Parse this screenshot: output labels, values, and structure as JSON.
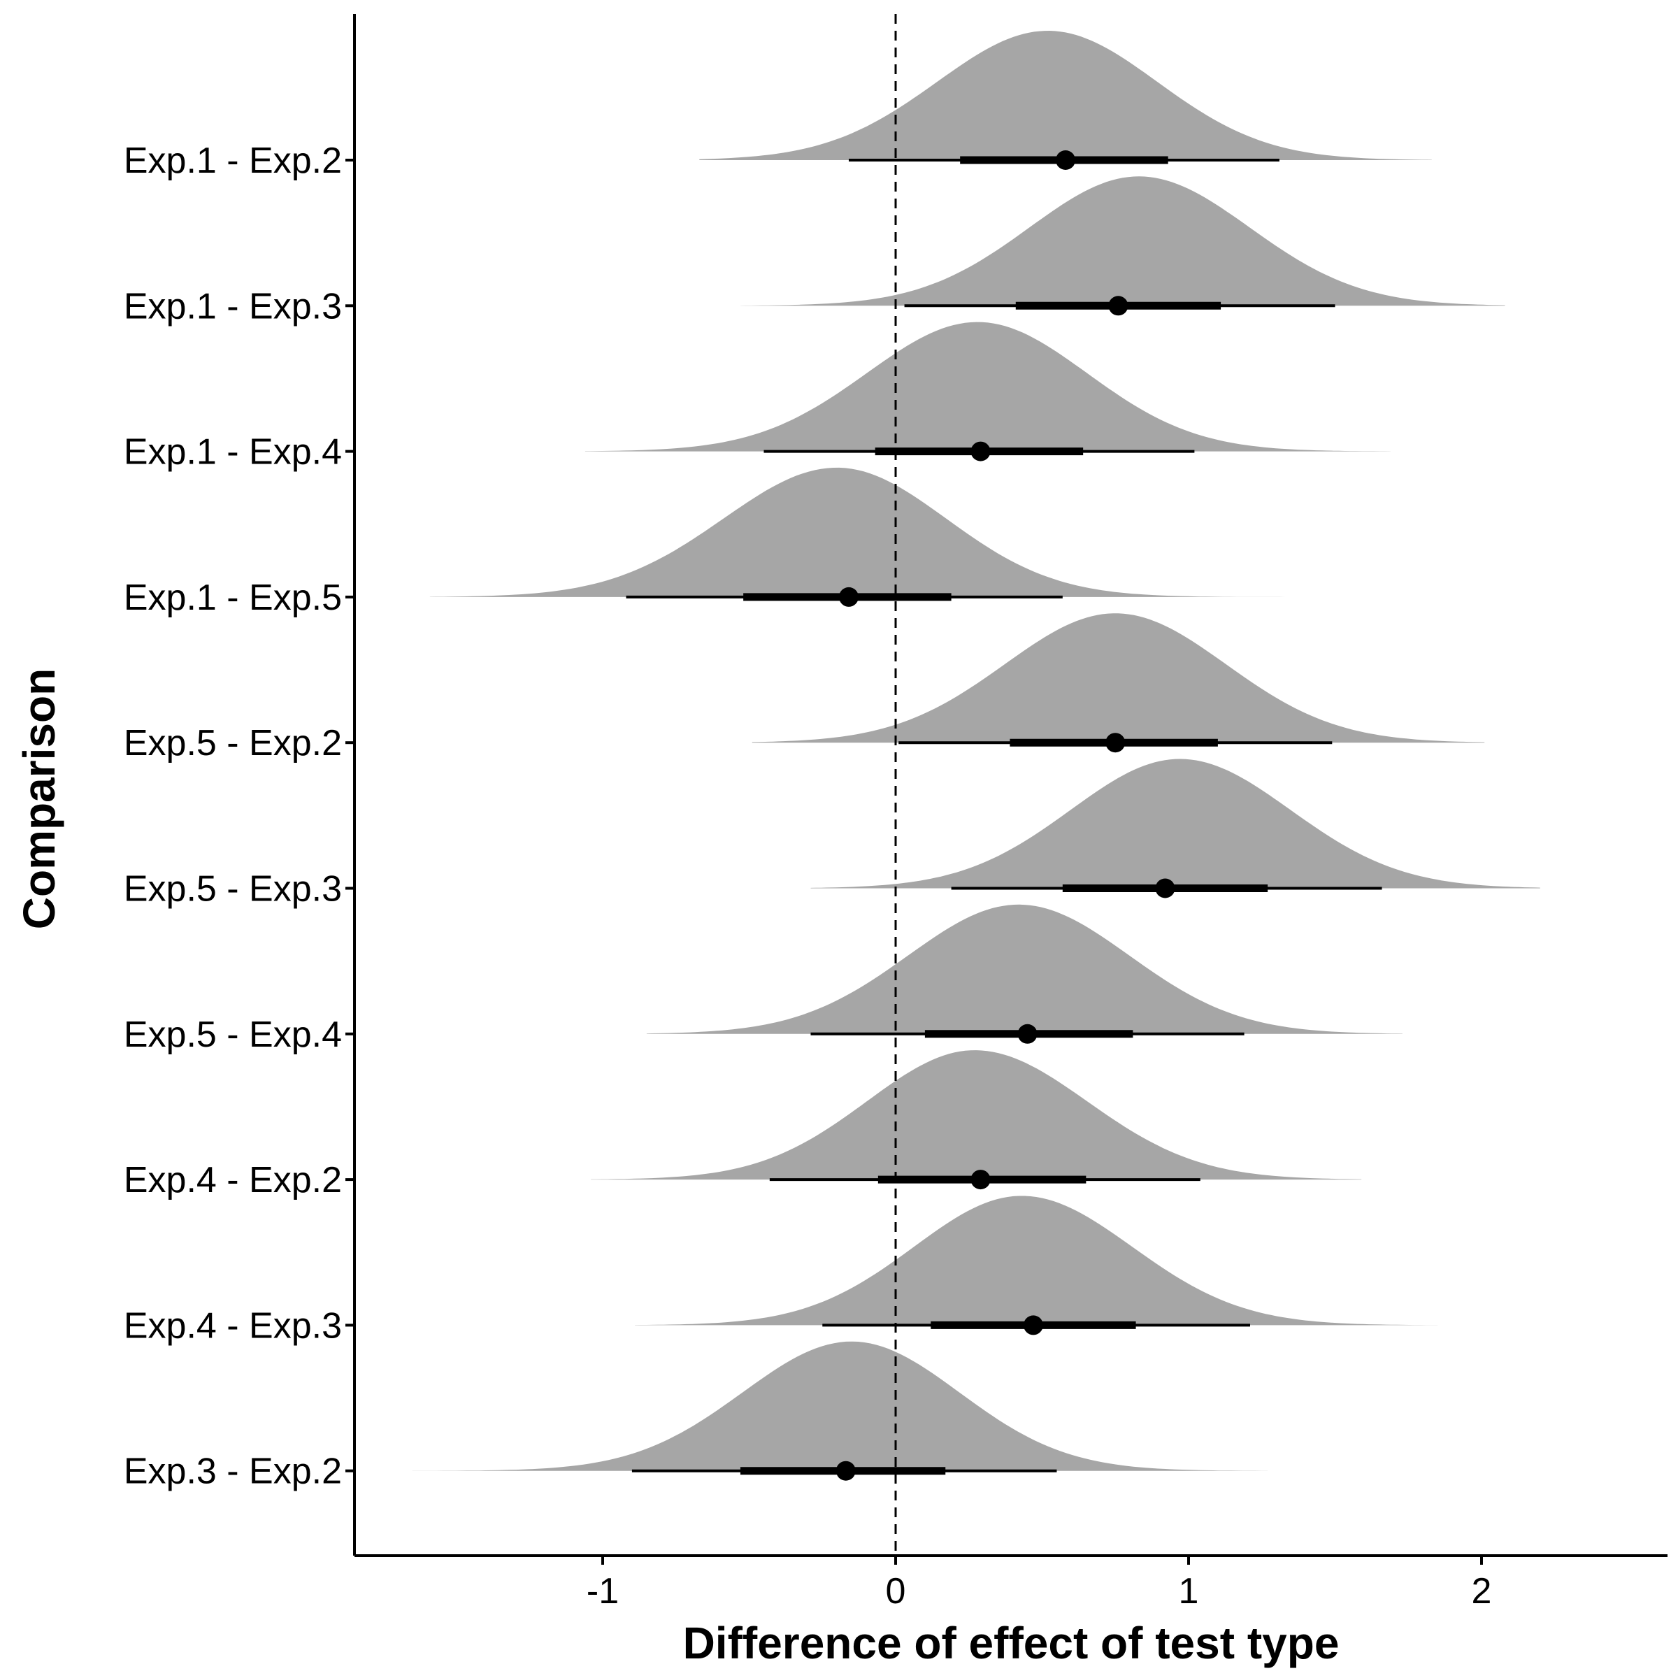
{
  "chart_data": {
    "type": "halfeye",
    "xlabel": "Difference of effect of test type",
    "ylabel": "Comparison",
    "xlim": [
      -1.85,
      2.65
    ],
    "xticks": [
      -1,
      0,
      1,
      2
    ],
    "xtick_labels": [
      "-1",
      "0",
      "1",
      "2"
    ],
    "reference_line": 0,
    "fill_color": "#a6a6a6",
    "point_color": "#000000",
    "grid": false,
    "series": [
      {
        "label": "Exp.1 - Exp.2",
        "median": 0.58,
        "interval_66": [
          0.22,
          0.93
        ],
        "interval_95": [
          -0.16,
          1.31
        ],
        "density_range": [
          -0.67,
          1.83
        ],
        "mode": 0.52
      },
      {
        "label": "Exp.1 - Exp.3",
        "median": 0.76,
        "interval_66": [
          0.41,
          1.11
        ],
        "interval_95": [
          0.03,
          1.5
        ],
        "density_range": [
          -0.53,
          2.08
        ],
        "mode": 0.83
      },
      {
        "label": "Exp.1 - Exp.4",
        "median": 0.29,
        "interval_66": [
          -0.07,
          0.64
        ],
        "interval_95": [
          -0.45,
          1.02
        ],
        "density_range": [
          -1.06,
          1.69
        ],
        "mode": 0.28
      },
      {
        "label": "Exp.1 - Exp.5",
        "median": -0.16,
        "interval_66": [
          -0.52,
          0.19
        ],
        "interval_95": [
          -0.92,
          0.57
        ],
        "density_range": [
          -1.59,
          1.33
        ],
        "mode": -0.2
      },
      {
        "label": "Exp.5 - Exp.2",
        "median": 0.75,
        "interval_66": [
          0.39,
          1.1
        ],
        "interval_95": [
          0.01,
          1.49
        ],
        "density_range": [
          -0.49,
          2.01
        ],
        "mode": 0.75
      },
      {
        "label": "Exp.5 - Exp.3",
        "median": 0.92,
        "interval_66": [
          0.57,
          1.27
        ],
        "interval_95": [
          0.19,
          1.66
        ],
        "density_range": [
          -0.29,
          2.2
        ],
        "mode": 0.97
      },
      {
        "label": "Exp.5 - Exp.4",
        "median": 0.45,
        "interval_66": [
          0.1,
          0.81
        ],
        "interval_95": [
          -0.29,
          1.19
        ],
        "density_range": [
          -0.85,
          1.73
        ],
        "mode": 0.42
      },
      {
        "label": "Exp.4 - Exp.2",
        "median": 0.29,
        "interval_66": [
          -0.06,
          0.65
        ],
        "interval_95": [
          -0.43,
          1.04
        ],
        "density_range": [
          -1.04,
          1.59
        ],
        "mode": 0.27
      },
      {
        "label": "Exp.4 - Exp.3",
        "median": 0.47,
        "interval_66": [
          0.12,
          0.82
        ],
        "interval_95": [
          -0.25,
          1.21
        ],
        "density_range": [
          -0.89,
          1.85
        ],
        "mode": 0.43
      },
      {
        "label": "Exp.3 - Exp.2",
        "median": -0.17,
        "interval_66": [
          -0.53,
          0.17
        ],
        "interval_95": [
          -0.9,
          0.55
        ],
        "density_range": [
          -1.65,
          1.27
        ],
        "mode": -0.15
      }
    ]
  }
}
